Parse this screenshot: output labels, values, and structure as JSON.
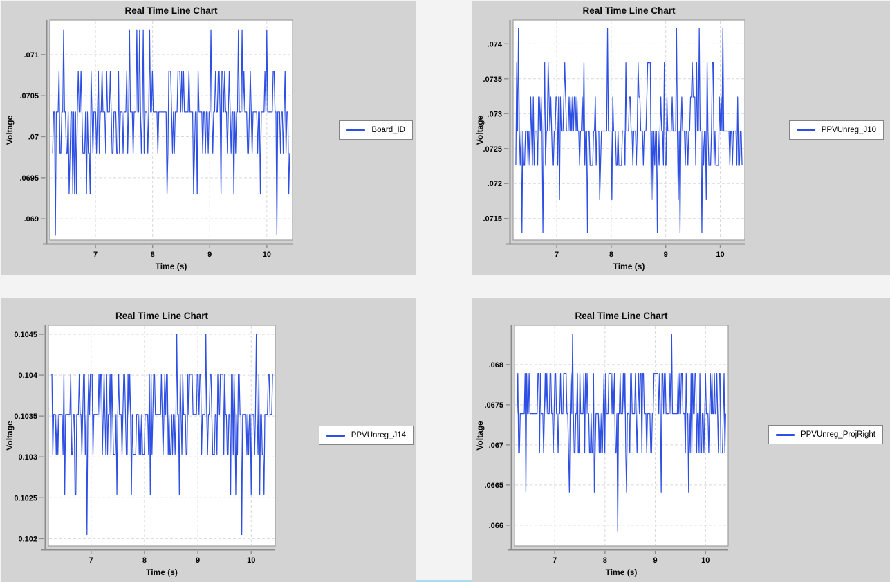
{
  "window": {
    "background": "#f2f3f2",
    "panel_background": "#d3d3d3",
    "plot_background": "#ffffff",
    "grid_color": "#d9d9d9",
    "axis_color": "#8c8c8c",
    "plot_border_color": "#9e9e9e",
    "text_color": "#000000",
    "line_color": "#2e4fe3",
    "legend_border_color": "#848484",
    "bottom_edge_color": "#aadcec"
  },
  "chart_data": [
    {
      "type": "line",
      "title": "Real Time Line Chart",
      "xlabel": "Time (s)",
      "ylabel": "Voltage",
      "legend": "Board_ID",
      "legend_position": "right",
      "grid": true,
      "x_range": [
        6.2,
        10.45
      ],
      "y_range": [
        0.06874,
        0.07142
      ],
      "x_ticks": [
        {
          "v": 7,
          "label": "7"
        },
        {
          "v": 8,
          "label": "8"
        },
        {
          "v": 9,
          "label": "9"
        },
        {
          "v": 10,
          "label": "10"
        }
      ],
      "y_ticks": [
        {
          "v": 0.069,
          "label": ".069"
        },
        {
          "v": 0.0695,
          "label": ".0695"
        },
        {
          "v": 0.07,
          "label": ".07"
        },
        {
          "v": 0.0705,
          "label": ".0705"
        },
        {
          "v": 0.071,
          "label": ".071"
        }
      ],
      "series": {
        "name": "Board_ID",
        "x_start": 6.25,
        "x_end": 10.4,
        "n": 260,
        "seed": 101,
        "baseline": 0.0703,
        "levels": [
          0.0688,
          0.0693,
          0.0698,
          0.0703,
          0.0708,
          0.0713
        ],
        "level_weights": [
          0,
          0.06,
          0.21,
          0.5,
          0.22,
          0.01
        ],
        "spikes_up": {
          "level": 0.0713,
          "x": [
            6.45,
            7.6,
            7.72,
            7.78,
            7.95,
            9.02,
            9.5,
            9.56,
            10.0
          ]
        },
        "spikes_down": {
          "level": 0.0688,
          "x": [
            6.3,
            10.17
          ]
        }
      }
    },
    {
      "type": "line",
      "title": "Real Time Line Chart",
      "xlabel": "Time (s)",
      "ylabel": "Voltage",
      "legend": "PPVUnreg_J10",
      "legend_position": "right",
      "grid": true,
      "x_range": [
        6.2,
        10.45
      ],
      "y_range": [
        0.07119,
        0.07434
      ],
      "x_ticks": [
        {
          "v": 7,
          "label": "7"
        },
        {
          "v": 8,
          "label": "8"
        },
        {
          "v": 9,
          "label": "9"
        },
        {
          "v": 10,
          "label": "10"
        }
      ],
      "y_ticks": [
        {
          "v": 0.0715,
          "label": ".0715"
        },
        {
          "v": 0.072,
          "label": ".072"
        },
        {
          "v": 0.0725,
          "label": ".0725"
        },
        {
          "v": 0.073,
          "label": ".073"
        },
        {
          "v": 0.0735,
          "label": ".0735"
        },
        {
          "v": 0.074,
          "label": ".074"
        }
      ],
      "series": {
        "name": "PPVUnreg_J10",
        "x_start": 6.25,
        "x_end": 10.4,
        "n": 260,
        "seed": 202,
        "baseline": 0.07275,
        "levels": [
          0.0713,
          0.07177,
          0.07226,
          0.07275,
          0.07324,
          0.07373,
          0.07422
        ],
        "level_weights": [
          0,
          0.04,
          0.26,
          0.46,
          0.19,
          0.05,
          0
        ],
        "spikes_up": {
          "level": 0.07422,
          "x": [
            6.3,
            7.93,
            9.2,
            9.62,
            10.05
          ]
        },
        "spikes_down": {
          "level": 0.0713,
          "x": [
            6.37,
            6.75,
            7.57,
            8.85,
            9.27,
            9.67
          ]
        }
      }
    },
    {
      "type": "line",
      "title": "Real Time Line Chart",
      "xlabel": "Time (s)",
      "ylabel": "Voltage",
      "legend": "PPVUnreg_J14",
      "legend_position": "right",
      "grid": true,
      "x_range": [
        6.2,
        10.45
      ],
      "y_range": [
        0.10191,
        0.10461
      ],
      "x_ticks": [
        {
          "v": 7,
          "label": "7"
        },
        {
          "v": 8,
          "label": "8"
        },
        {
          "v": 9,
          "label": "9"
        },
        {
          "v": 10,
          "label": "10"
        }
      ],
      "y_ticks": [
        {
          "v": 0.102,
          "label": "0.102"
        },
        {
          "v": 0.1025,
          "label": "0.1025"
        },
        {
          "v": 0.103,
          "label": "0.103"
        },
        {
          "v": 0.1035,
          "label": "0.1035"
        },
        {
          "v": 0.104,
          "label": "0.104"
        },
        {
          "v": 0.1045,
          "label": "0.1045"
        }
      ],
      "series": {
        "name": "PPVUnreg_J14",
        "x_start": 6.25,
        "x_end": 10.4,
        "n": 260,
        "seed": 303,
        "baseline": 0.10352,
        "levels": [
          0.10205,
          0.10254,
          0.10303,
          0.10352,
          0.10401,
          0.1045
        ],
        "level_weights": [
          0,
          0.055,
          0.3,
          0.42,
          0.225,
          0
        ],
        "spikes_up": {
          "level": 0.1045,
          "x": [
            8.6,
            9.15,
            10.1
          ]
        },
        "spikes_down": {
          "level": 0.10205,
          "x": [
            6.93,
            9.82
          ]
        }
      }
    },
    {
      "type": "line",
      "title": "Real Time Line Chart",
      "xlabel": "Time (s)",
      "ylabel": "Voltage",
      "legend": "PPVUnreg_ProjRight",
      "legend_position": "right",
      "grid": true,
      "x_range": [
        6.2,
        10.45
      ],
      "y_range": [
        0.06574,
        0.06849
      ],
      "x_ticks": [
        {
          "v": 7,
          "label": "7"
        },
        {
          "v": 8,
          "label": "8"
        },
        {
          "v": 9,
          "label": "9"
        },
        {
          "v": 10,
          "label": "10"
        }
      ],
      "y_ticks": [
        {
          "v": 0.066,
          "label": ".066"
        },
        {
          "v": 0.0665,
          "label": ".0665"
        },
        {
          "v": 0.067,
          "label": ".067"
        },
        {
          "v": 0.0675,
          "label": ".0675"
        },
        {
          "v": 0.068,
          "label": ".068"
        }
      ],
      "series": {
        "name": "PPVUnreg_ProjRight",
        "x_start": 6.25,
        "x_end": 10.4,
        "n": 260,
        "seed": 404,
        "baseline": 0.06739,
        "levels": [
          0.06592,
          0.06641,
          0.0669,
          0.06739,
          0.06789,
          0.06838
        ],
        "level_weights": [
          0,
          0.02,
          0.23,
          0.5,
          0.25,
          0
        ],
        "spikes_up": {
          "level": 0.06838,
          "x": [
            7.35,
            9.32
          ]
        },
        "spikes_down": {
          "level": 0.06592,
          "x": [
            8.25
          ]
        }
      }
    }
  ]
}
